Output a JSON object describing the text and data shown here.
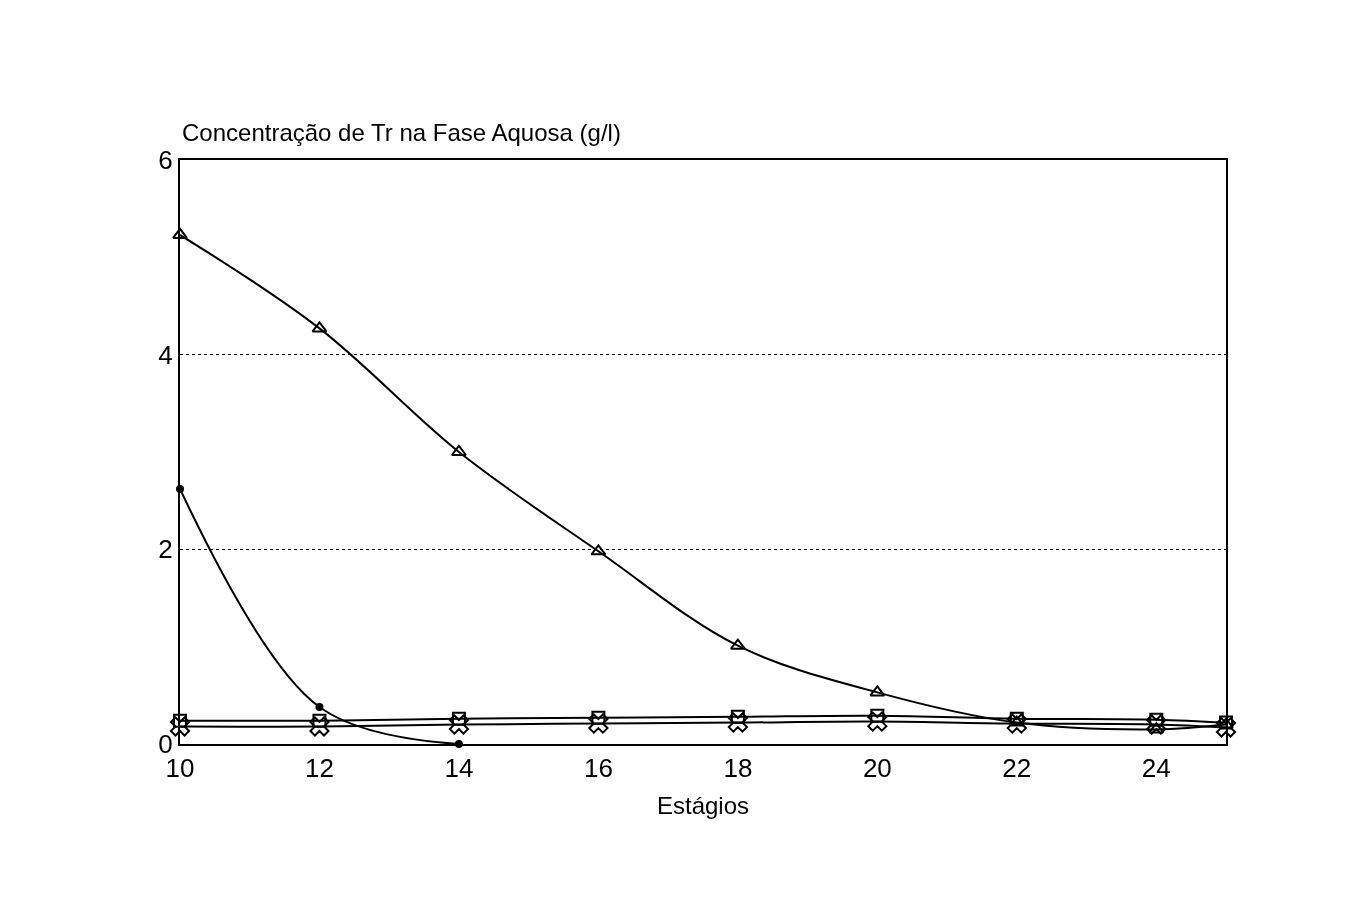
{
  "chart_data": {
    "type": "line",
    "ylabel": "Concentração de Tr na Fase Aquosa (g/l)",
    "xlabel": "Estágios",
    "xlim": [
      10,
      25
    ],
    "xticks": [
      10,
      12,
      14,
      16,
      18,
      20,
      22,
      24
    ],
    "ylim": [
      0,
      6
    ],
    "yticks": [
      0,
      2,
      4,
      6
    ],
    "grid": "y",
    "line_style": "solid",
    "series": [
      {
        "color": "#000000",
        "marker": "triangle",
        "x": [
          10,
          12,
          14,
          16,
          18,
          20,
          22,
          24,
          25
        ],
        "values": [
          5.23,
          4.27,
          3.0,
          1.98,
          1.01,
          0.53,
          0.22,
          0.15,
          0.2
        ]
      },
      {
        "color": "#000000",
        "marker": "circle",
        "x": [
          10,
          12,
          14
        ],
        "values": [
          2.62,
          0.38,
          0.0
        ]
      },
      {
        "color": "#000000",
        "marker": "square",
        "x": [
          10,
          12,
          14,
          16,
          18,
          20,
          22,
          24,
          25
        ],
        "values": [
          0.24,
          0.24,
          0.26,
          0.27,
          0.28,
          0.29,
          0.26,
          0.25,
          0.22
        ]
      },
      {
        "color": "#000000",
        "marker": "cross",
        "x": [
          10,
          12,
          14,
          16,
          18,
          20,
          22,
          24,
          25
        ],
        "values": [
          0.18,
          0.18,
          0.2,
          0.21,
          0.22,
          0.23,
          0.21,
          0.2,
          0.17
        ]
      }
    ]
  }
}
